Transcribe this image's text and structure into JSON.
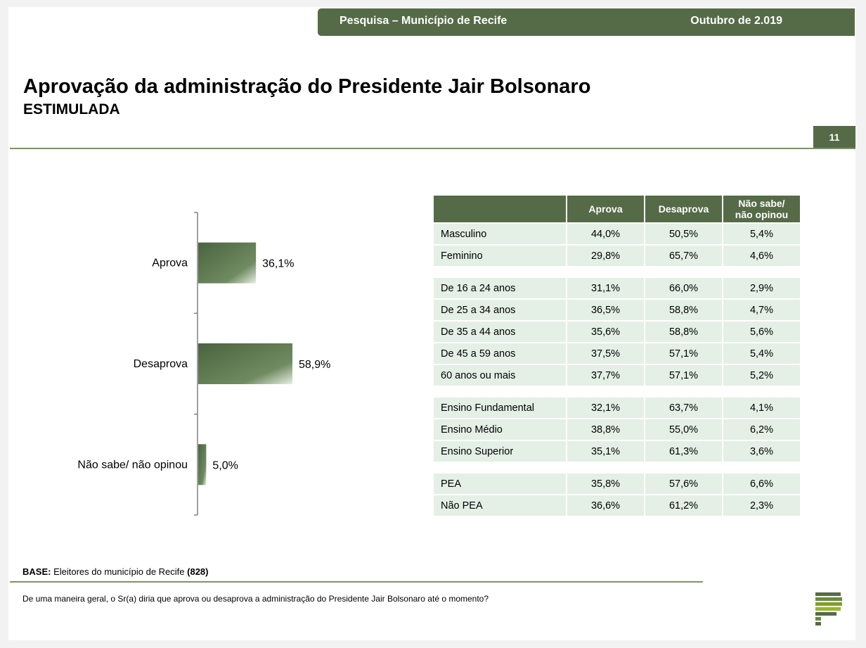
{
  "header": {
    "survey_title": "Pesquisa – Município de Recife",
    "date": "Outubro de 2.019"
  },
  "title": "Aprovação da administração do Presidente Jair Bolsonaro",
  "subtitle": "ESTIMULADA",
  "page_number": "11",
  "colors": {
    "brand_green": "#556b47",
    "rule_green": "#7d9468",
    "row_bg": "#e4efe6"
  },
  "chart_data": {
    "type": "bar",
    "orientation": "horizontal",
    "categories": [
      "Aprova",
      "Desaprova",
      "Não sabe/ não opinou"
    ],
    "values": [
      36.1,
      58.9,
      5.0
    ],
    "value_labels": [
      "36,1%",
      "58,9%",
      "5,0%"
    ],
    "unit": "%",
    "title": "",
    "xlabel": "",
    "ylabel": "",
    "xlim": [
      0,
      100
    ],
    "grid": false,
    "legend": "none"
  },
  "table": {
    "columns": [
      "",
      "Aprova",
      "Desaprova",
      "Não sabe/\nnão opinou"
    ],
    "groups": [
      [
        [
          "Masculino",
          "44,0%",
          "50,5%",
          "5,4%"
        ],
        [
          "Feminino",
          "29,8%",
          "65,7%",
          "4,6%"
        ]
      ],
      [
        [
          "De 16 a 24 anos",
          "31,1%",
          "66,0%",
          "2,9%"
        ],
        [
          "De 25 a 34 anos",
          "36,5%",
          "58,8%",
          "4,7%"
        ],
        [
          "De 35 a 44 anos",
          "35,6%",
          "58,8%",
          "5,6%"
        ],
        [
          "De 45 a 59 anos",
          "37,5%",
          "57,1%",
          "5,4%"
        ],
        [
          "60 anos ou mais",
          "37,7%",
          "57,1%",
          "5,2%"
        ]
      ],
      [
        [
          "Ensino Fundamental",
          "32,1%",
          "63,7%",
          "4,1%"
        ],
        [
          "Ensino Médio",
          "38,8%",
          "55,0%",
          "6,2%"
        ],
        [
          "Ensino Superior",
          "35,1%",
          "61,3%",
          "3,6%"
        ]
      ],
      [
        [
          "PEA",
          "35,8%",
          "57,6%",
          "6,6%"
        ],
        [
          "Não PEA",
          "36,6%",
          "61,2%",
          "2,3%"
        ]
      ]
    ]
  },
  "base": {
    "label": "BASE:",
    "text": "Eleitores do município de Recife",
    "count": "(828)"
  },
  "question": "De uma maneira geral, o Sr(a) diria que aprova ou desaprova a administração do Presidente Jair Bolsonaro até o momento?"
}
